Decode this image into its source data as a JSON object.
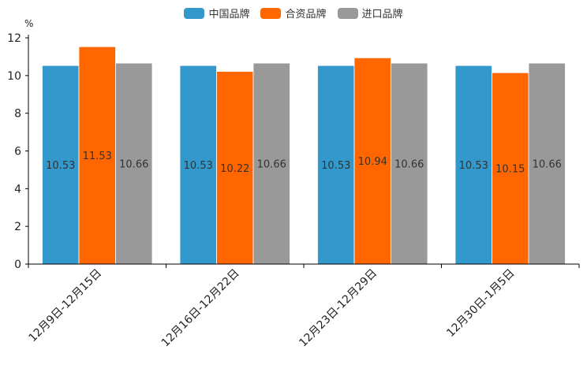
{
  "chart_data": {
    "type": "bar",
    "unit": "%",
    "categories": [
      "12月9日-12月15日",
      "12月16日-12月22日",
      "12月23日-12月29日",
      "12月30日-1月5日"
    ],
    "series": [
      {
        "name": "中国品牌",
        "color": "#3399CC",
        "values": [
          10.53,
          10.53,
          10.53,
          10.53
        ],
        "labels": [
          "10.53",
          "10.53",
          "10.53",
          "10.53"
        ]
      },
      {
        "name": "合资品牌",
        "color": "#FF6600",
        "values": [
          11.53,
          10.22,
          10.94,
          10.15
        ],
        "labels": [
          "11.53",
          "10.22",
          "10.94",
          "10.15"
        ]
      },
      {
        "name": "进口品牌",
        "color": "#999999",
        "values": [
          10.66,
          10.66,
          10.66,
          10.66
        ],
        "labels": [
          "10.66",
          "10.66",
          "10.66",
          "10.66"
        ]
      }
    ],
    "y_ticks": [
      "0",
      "2",
      "4",
      "6",
      "8",
      "10",
      "12"
    ],
    "ylim": [
      0,
      12
    ],
    "legend_position": "top-center",
    "grid": false
  }
}
